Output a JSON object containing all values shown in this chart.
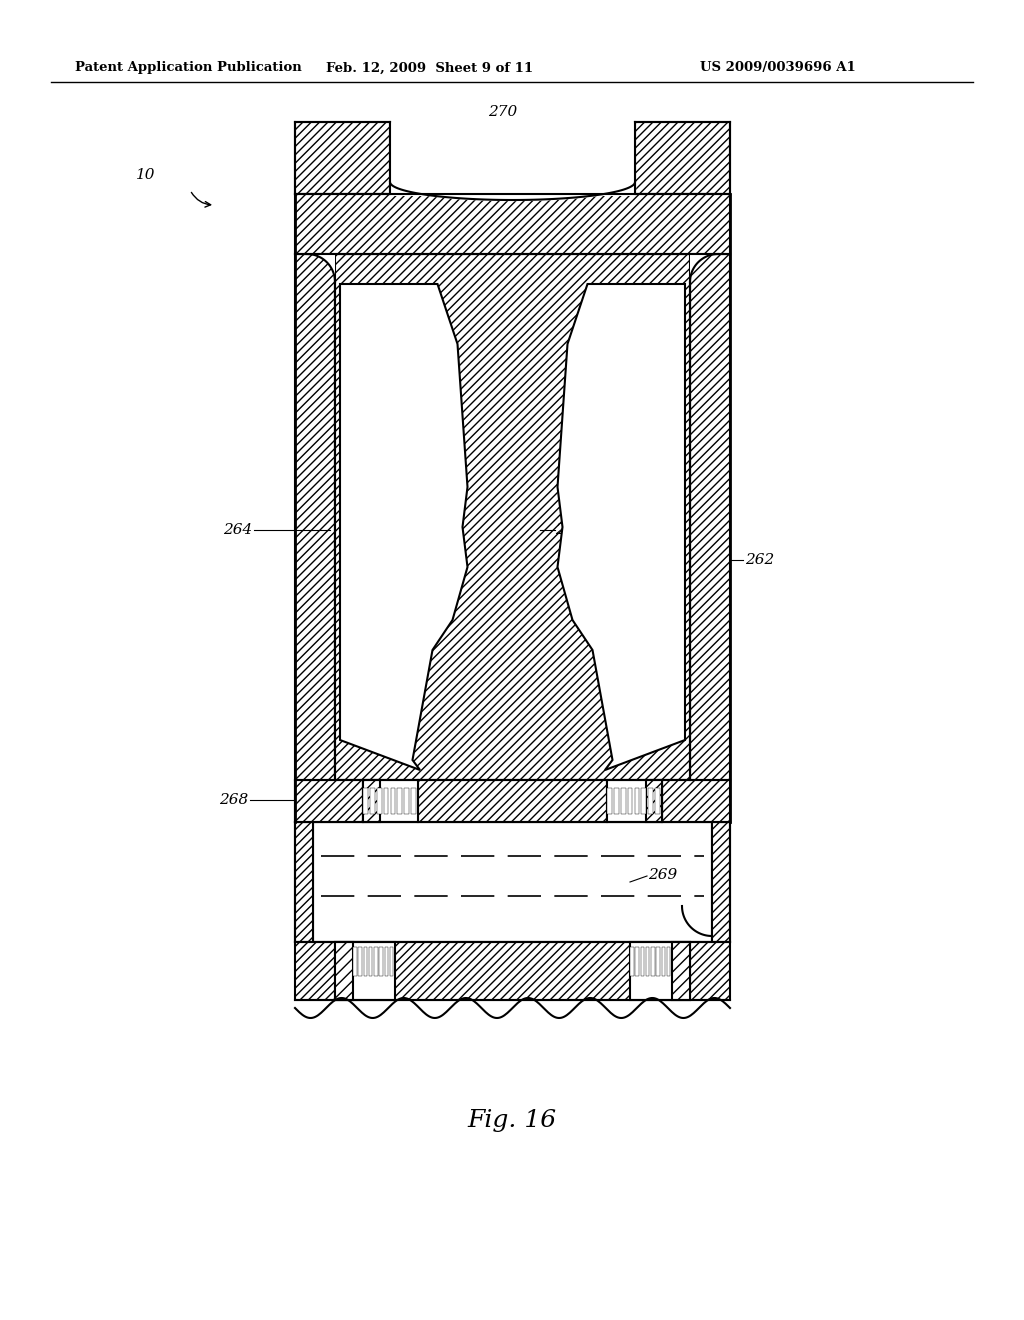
{
  "title": "Fig. 16",
  "header_left": "Patent Application Publication",
  "header_mid": "Feb. 12, 2009  Sheet 9 of 11",
  "header_right": "US 2009/0039696 A1",
  "bg_color": "#ffffff",
  "fig_width": 10.24,
  "fig_height": 13.2,
  "dpi": 100
}
